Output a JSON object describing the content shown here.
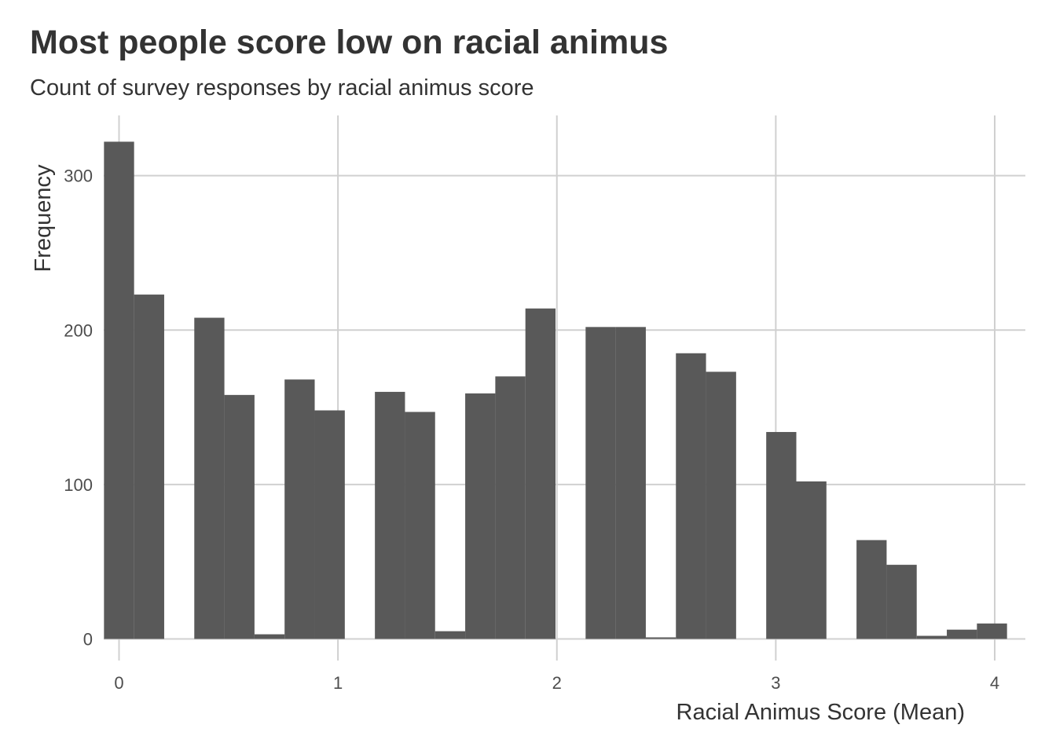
{
  "chart_data": {
    "type": "bar",
    "title": "Most people score low on racial animus",
    "subtitle": "Count of survey responses by racial animus score",
    "xlabel": "Racial Animus Score (Mean)",
    "ylabel": "Frequency",
    "xlim": [
      -0.07,
      4.14
    ],
    "ylim": [
      -14,
      339
    ],
    "x_ticks": [
      0,
      1,
      2,
      3,
      4
    ],
    "y_ticks": [
      0,
      100,
      200,
      300
    ],
    "grid": true,
    "bin_width": 0.1375,
    "bars": [
      {
        "x": 0.0,
        "value": 322
      },
      {
        "x": 0.1375,
        "value": 223
      },
      {
        "x": 0.275,
        "value": 0
      },
      {
        "x": 0.4125,
        "value": 208
      },
      {
        "x": 0.55,
        "value": 158
      },
      {
        "x": 0.6875,
        "value": 3
      },
      {
        "x": 0.825,
        "value": 168
      },
      {
        "x": 0.9625,
        "value": 148
      },
      {
        "x": 1.1,
        "value": 0
      },
      {
        "x": 1.2375,
        "value": 160
      },
      {
        "x": 1.375,
        "value": 147
      },
      {
        "x": 1.5125,
        "value": 5
      },
      {
        "x": 1.65,
        "value": 159
      },
      {
        "x": 1.7875,
        "value": 170
      },
      {
        "x": 1.925,
        "value": 214
      },
      {
        "x": 2.0625,
        "value": 0
      },
      {
        "x": 2.2,
        "value": 202
      },
      {
        "x": 2.3375,
        "value": 202
      },
      {
        "x": 2.475,
        "value": 1
      },
      {
        "x": 2.6125,
        "value": 185
      },
      {
        "x": 2.75,
        "value": 173
      },
      {
        "x": 2.8875,
        "value": 0
      },
      {
        "x": 3.025,
        "value": 134
      },
      {
        "x": 3.1625,
        "value": 102
      },
      {
        "x": 3.3,
        "value": 0
      },
      {
        "x": 3.4375,
        "value": 64
      },
      {
        "x": 3.575,
        "value": 48
      },
      {
        "x": 3.7125,
        "value": 2
      },
      {
        "x": 3.85,
        "value": 6
      },
      {
        "x": 3.9875,
        "value": 10
      }
    ]
  }
}
